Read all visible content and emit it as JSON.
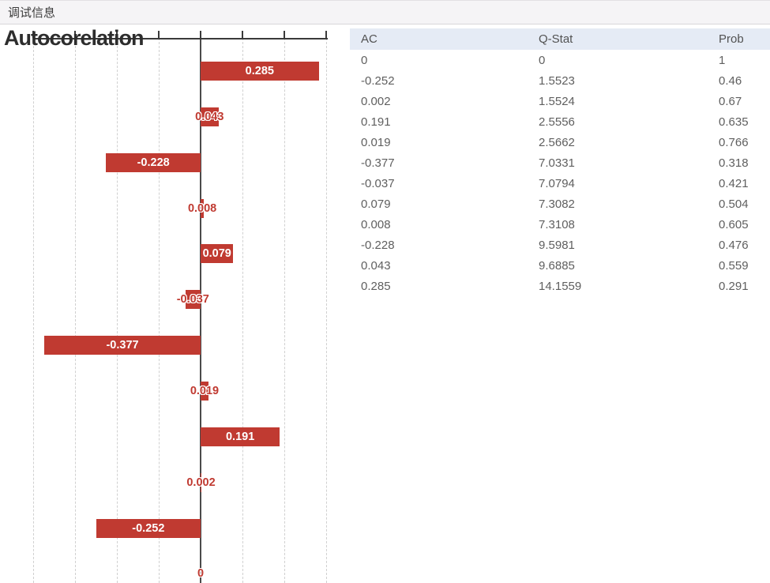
{
  "toolbar": {
    "title": "调试信息"
  },
  "chart_data": {
    "type": "bar",
    "orientation": "horizontal",
    "title": "Autocorelation",
    "values_top_to_bottom": [
      0.285,
      0.043,
      -0.228,
      0.008,
      0.079,
      -0.037,
      -0.377,
      0.019,
      0.191,
      0.002,
      -0.252,
      0
    ],
    "bar_labels": [
      "0.285",
      "0.043",
      "-0.228",
      "0.008",
      "0.079",
      "-0.037",
      "-0.377",
      "0.019",
      "0.191",
      "0.002",
      "-0.252",
      "0"
    ],
    "xlim": [
      -0.42,
      0.32
    ],
    "gridline_step": 0.1,
    "grid": true,
    "zero_line": true,
    "legend": "none",
    "bar_color": "#c03a31",
    "label_color_inside": "#ffffff",
    "label_color_outside": "#c03a31"
  },
  "table": {
    "columns": [
      "AC",
      "Q-Stat",
      "Prob"
    ],
    "rows": [
      [
        "0",
        "0",
        "1"
      ],
      [
        "-0.252",
        "1.5523",
        "0.46"
      ],
      [
        "0.002",
        "1.5524",
        "0.67"
      ],
      [
        "0.191",
        "2.5556",
        "0.635"
      ],
      [
        "0.019",
        "2.5662",
        "0.766"
      ],
      [
        "-0.377",
        "7.0331",
        "0.318"
      ],
      [
        "-0.037",
        "7.0794",
        "0.421"
      ],
      [
        "0.079",
        "7.3082",
        "0.504"
      ],
      [
        "0.008",
        "7.3108",
        "0.605"
      ],
      [
        "-0.228",
        "9.5981",
        "0.476"
      ],
      [
        "0.043",
        "9.6885",
        "0.559"
      ],
      [
        "0.285",
        "14.1559",
        "0.291"
      ]
    ]
  },
  "colors": {
    "bar_red": "#c03a31",
    "toolbar_bg": "#f5f4f6",
    "table_header_bg": "#e5ebf5",
    "gridline": "#d0d0d0",
    "axis": "#3a3a3a"
  }
}
